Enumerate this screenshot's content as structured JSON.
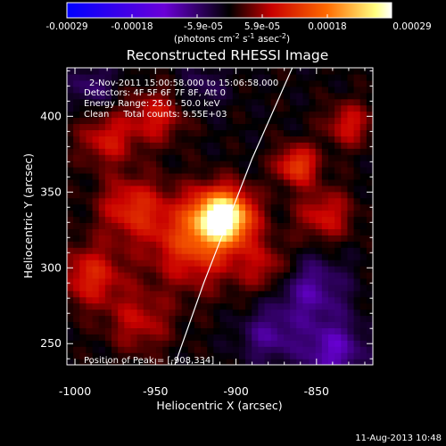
{
  "colorbar": {
    "ticks": [
      "-0.00029",
      "-0.00018",
      "-5.9e-05",
      "5.9e-05",
      "0.00018",
      "0.00029"
    ],
    "unit_label": "(photons cm",
    "unit_exp1": "-2",
    "unit_mid": " s",
    "unit_exp2": "-1",
    "unit_tail": " asec",
    "unit_exp3": "-2",
    "unit_close": ")",
    "colors": [
      "#0000ff",
      "#6a00d8",
      "#000000",
      "#c80000",
      "#ff6a00",
      "#ffff80",
      "#ffffff"
    ]
  },
  "chart_data": {
    "type": "heatmap",
    "title": "Reconstructed RHESSI Image",
    "xlabel": "Heliocentric X (arcsec)",
    "ylabel": "Heliocentric Y (arcsec)",
    "xlim": [
      -1005,
      -815
    ],
    "ylim": [
      236,
      432
    ],
    "x_ticks": [
      -1000,
      -950,
      -900,
      -850
    ],
    "y_ticks": [
      250,
      300,
      350,
      400
    ],
    "info_lines": [
      "2-Nov-2011 15:00:58.000 to 15:06:58.000",
      "Detectors: 4F 5F 6F 7F 8F, Att 0",
      "Energy Range: 25.0 - 50.0 keV",
      "Clean     Total counts: 9.55E+03"
    ],
    "peak_label": "Position of Peak = [-908,334]",
    "peak": [
      -908,
      334
    ],
    "limb_line": [
      [
        -938,
        236
      ],
      [
        -920,
        290
      ],
      [
        -890,
        372
      ],
      [
        -865,
        432
      ]
    ],
    "sources": [
      {
        "x": -908,
        "y": 334,
        "amp": 1.0,
        "sigma": 12
      },
      {
        "x": -925,
        "y": 318,
        "amp": 0.45,
        "sigma": 20
      },
      {
        "x": -965,
        "y": 340,
        "amp": 0.35,
        "sigma": 14
      },
      {
        "x": -980,
        "y": 385,
        "amp": 0.3,
        "sigma": 12
      },
      {
        "x": -950,
        "y": 400,
        "amp": 0.3,
        "sigma": 12
      },
      {
        "x": -862,
        "y": 368,
        "amp": 0.45,
        "sigma": 9
      },
      {
        "x": -845,
        "y": 335,
        "amp": 0.3,
        "sigma": 12
      },
      {
        "x": -990,
        "y": 295,
        "amp": 0.35,
        "sigma": 14
      },
      {
        "x": -960,
        "y": 265,
        "amp": 0.25,
        "sigma": 14
      },
      {
        "x": -880,
        "y": 300,
        "amp": 0.25,
        "sigma": 12
      },
      {
        "x": -830,
        "y": 395,
        "amp": 0.3,
        "sigma": 10
      },
      {
        "x": -855,
        "y": 285,
        "amp": -0.3,
        "sigma": 16
      },
      {
        "x": -840,
        "y": 245,
        "amp": -0.35,
        "sigma": 14
      },
      {
        "x": -880,
        "y": 255,
        "amp": -0.25,
        "sigma": 12
      },
      {
        "x": -990,
        "y": 420,
        "amp": -0.2,
        "sigma": 10
      },
      {
        "x": -920,
        "y": 420,
        "amp": -0.15,
        "sigma": 10
      }
    ]
  },
  "footer": {
    "date_stamp": "11-Aug-2013 10:48"
  }
}
